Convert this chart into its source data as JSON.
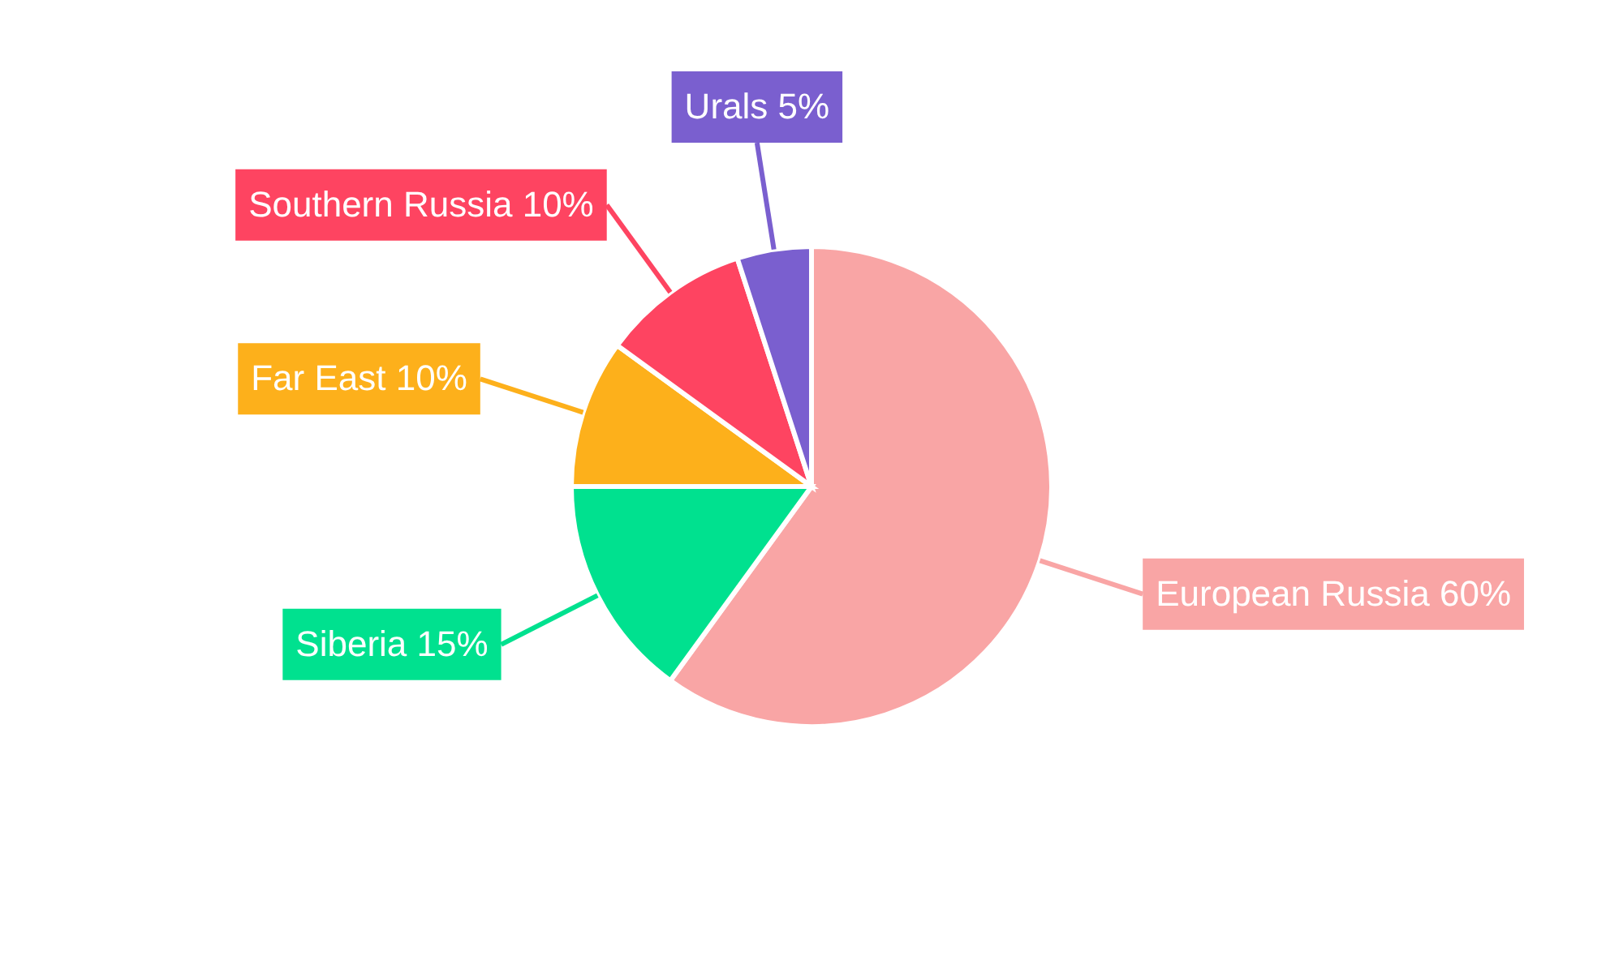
{
  "chart_data": {
    "type": "pie",
    "categories": [
      "European Russia",
      "Siberia",
      "Far East",
      "Southern Russia",
      "Urals"
    ],
    "values": [
      60,
      15,
      10,
      10,
      5
    ],
    "value_labels": [
      "60%",
      "15%",
      "10%",
      "10%",
      "5%"
    ],
    "colors": [
      "#f9a5a5",
      "#00e18f",
      "#fdb01b",
      "#fe4461",
      "#7a5fcf"
    ]
  }
}
